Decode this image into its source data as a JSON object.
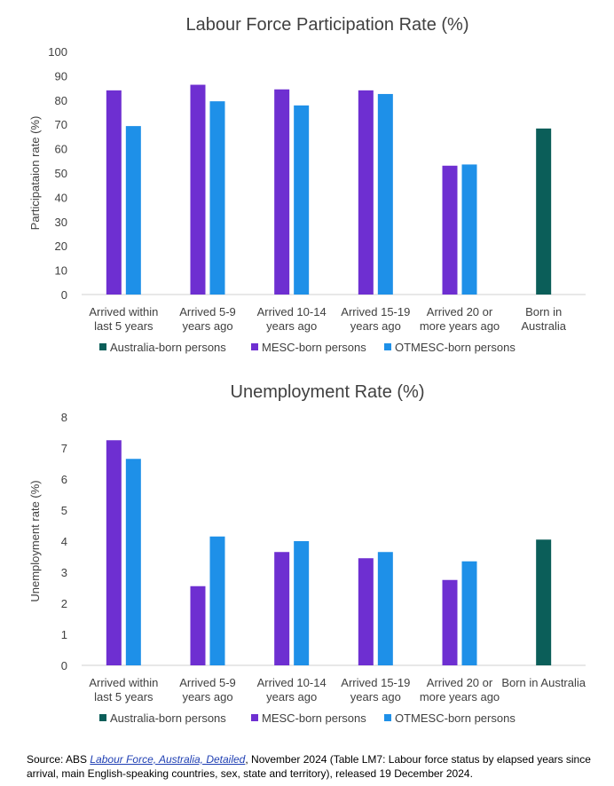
{
  "colors": {
    "australia": "#0b5e59",
    "mesc": "#6e2fd1",
    "otmesc": "#1e90e8",
    "axis": "#d0d0d0",
    "text": "#404040"
  },
  "legend": [
    {
      "key": "australia",
      "label": "Australia-born persons"
    },
    {
      "key": "mesc",
      "label": "MESC-born persons"
    },
    {
      "key": "otmesc",
      "label": "OTMESC-born persons"
    }
  ],
  "chart_data": [
    {
      "type": "bar",
      "title": "Labour Force Participation Rate (%)",
      "ylabel": "Participataion rate (%)",
      "xlabel": "",
      "ylim": [
        0,
        100
      ],
      "yticks": [
        "0",
        "10",
        "20",
        "30",
        "40",
        "50",
        "60",
        "70",
        "80",
        "90",
        "100"
      ],
      "categories": [
        [
          "Arrived within",
          "last 5 years"
        ],
        [
          "Arrived 5-9",
          "years ago"
        ],
        [
          "Arrived 10-14",
          "years ago"
        ],
        [
          "Arrived 15-19",
          "years ago"
        ],
        [
          "Arrived 20 or",
          "more years ago"
        ],
        [
          "Born in",
          "Australia"
        ]
      ],
      "series": [
        {
          "name": "Australia-born persons",
          "key": "australia",
          "values": [
            null,
            null,
            null,
            null,
            null,
            68.3
          ]
        },
        {
          "name": "MESC-born persons",
          "key": "mesc",
          "values": [
            84.0,
            86.3,
            84.4,
            84.0,
            53.0,
            null
          ]
        },
        {
          "name": "OTMESC-born persons",
          "key": "otmesc",
          "values": [
            69.3,
            79.5,
            77.8,
            82.5,
            53.5,
            null
          ]
        }
      ],
      "legend_position": "bottom",
      "grid": false
    },
    {
      "type": "bar",
      "title": "Unemployment Rate (%)",
      "ylabel": "Unemployment rate (%)",
      "xlabel": "",
      "ylim": [
        0,
        8
      ],
      "yticks": [
        "0",
        "1",
        "2",
        "3",
        "4",
        "5",
        "6",
        "7",
        "8"
      ],
      "categories": [
        [
          "Arrived within",
          "last 5 years"
        ],
        [
          "Arrived 5-9",
          "years ago"
        ],
        [
          "Arrived 10-14",
          "years ago"
        ],
        [
          "Arrived 15-19",
          "years ago"
        ],
        [
          "Arrived 20 or",
          "more years ago"
        ],
        [
          "Born in Australia"
        ]
      ],
      "series": [
        {
          "name": "Australia-born persons",
          "key": "australia",
          "values": [
            null,
            null,
            null,
            null,
            null,
            4.05
          ]
        },
        {
          "name": "MESC-born persons",
          "key": "mesc",
          "values": [
            7.25,
            2.55,
            3.65,
            3.45,
            2.75,
            null
          ]
        },
        {
          "name": "OTMESC-born persons",
          "key": "otmesc",
          "values": [
            6.65,
            4.15,
            4.0,
            3.65,
            3.35,
            null
          ]
        }
      ],
      "legend_position": "bottom",
      "grid": false
    }
  ],
  "source": {
    "prefix": "Source: ABS ",
    "link_text": "Labour Force, Australia, Detailed",
    "suffix": ", November 2024 (Table LM7: Labour force status by elapsed years since arrival, main English-speaking countries, sex, state and territory), released 19 December 2024."
  }
}
